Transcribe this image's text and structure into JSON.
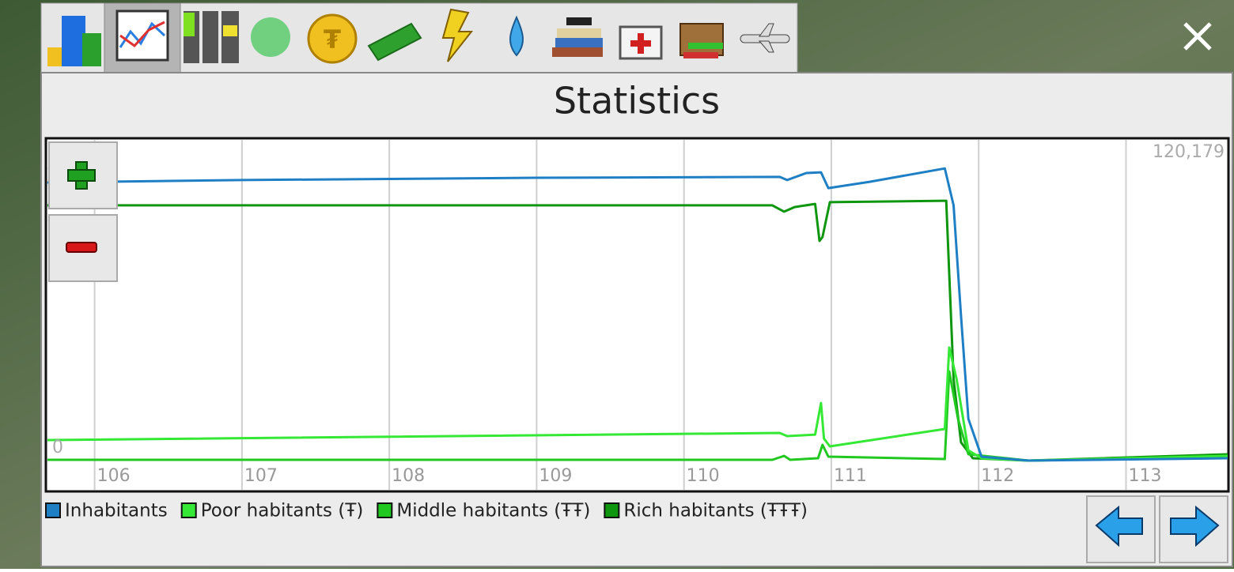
{
  "window": {
    "title": "Statistics"
  },
  "chart_data": {
    "type": "line",
    "xlim": [
      105.68,
      113.69
    ],
    "xticks": [
      106,
      107,
      108,
      109,
      110,
      111,
      112,
      113
    ],
    "ylim": [
      -12025,
      131950
    ],
    "yticks": [
      0,
      {
        "value": 120179,
        "label": "120,179"
      }
    ],
    "grid": true,
    "series": [
      {
        "name": "Inhabitants",
        "color": "#1f7fc4",
        "x": [
          105.68,
          107,
          109,
          110.65,
          110.7,
          110.83,
          110.93,
          110.98,
          111.26,
          111.77,
          111.83,
          111.88,
          111.93,
          112.02,
          112.34,
          113.69
        ],
        "values": [
          114400,
          115400,
          116350,
          116700,
          115400,
          118300,
          118600,
          112100,
          114700,
          120179,
          105000,
          59500,
          17200,
          1600,
          0,
          975
        ]
      },
      {
        "name": "Poor habitants (Ŧ)",
        "color": "#35e835",
        "x": [
          105.68,
          110.65,
          110.7,
          110.89,
          110.93,
          110.95,
          110.99,
          111.77,
          111.8,
          111.85,
          111.93,
          112.02,
          112.34,
          113.69
        ],
        "values": [
          8450,
          11375,
          10075,
          10700,
          23700,
          9100,
          5850,
          13000,
          46500,
          33500,
          4225,
          975,
          0,
          1950
        ]
      },
      {
        "name": "Middle habitants (ŦŦ)",
        "color": "#20c820",
        "x": [
          105.68,
          110.6,
          110.68,
          110.72,
          110.91,
          110.94,
          110.98,
          111.77,
          111.8,
          111.86,
          111.93,
          112.34,
          113.69
        ],
        "values": [
          325,
          325,
          1950,
          325,
          975,
          6500,
          1625,
          650,
          36700,
          17200,
          2600,
          0,
          1625
        ]
      },
      {
        "name": "Rich habitants (ŦŦŦ)",
        "color": "#0e960e",
        "x": [
          105.68,
          109,
          110.6,
          110.68,
          110.75,
          110.89,
          110.92,
          110.94,
          110.99,
          111.77,
          111.78,
          111.83,
          111.88,
          111.96,
          112.34,
          113.69
        ],
        "values": [
          105000,
          105000,
          105000,
          102400,
          104300,
          105600,
          90350,
          91975,
          106300,
          106900,
          106900,
          33500,
          7500,
          975,
          0,
          2600
        ]
      }
    ]
  }
}
